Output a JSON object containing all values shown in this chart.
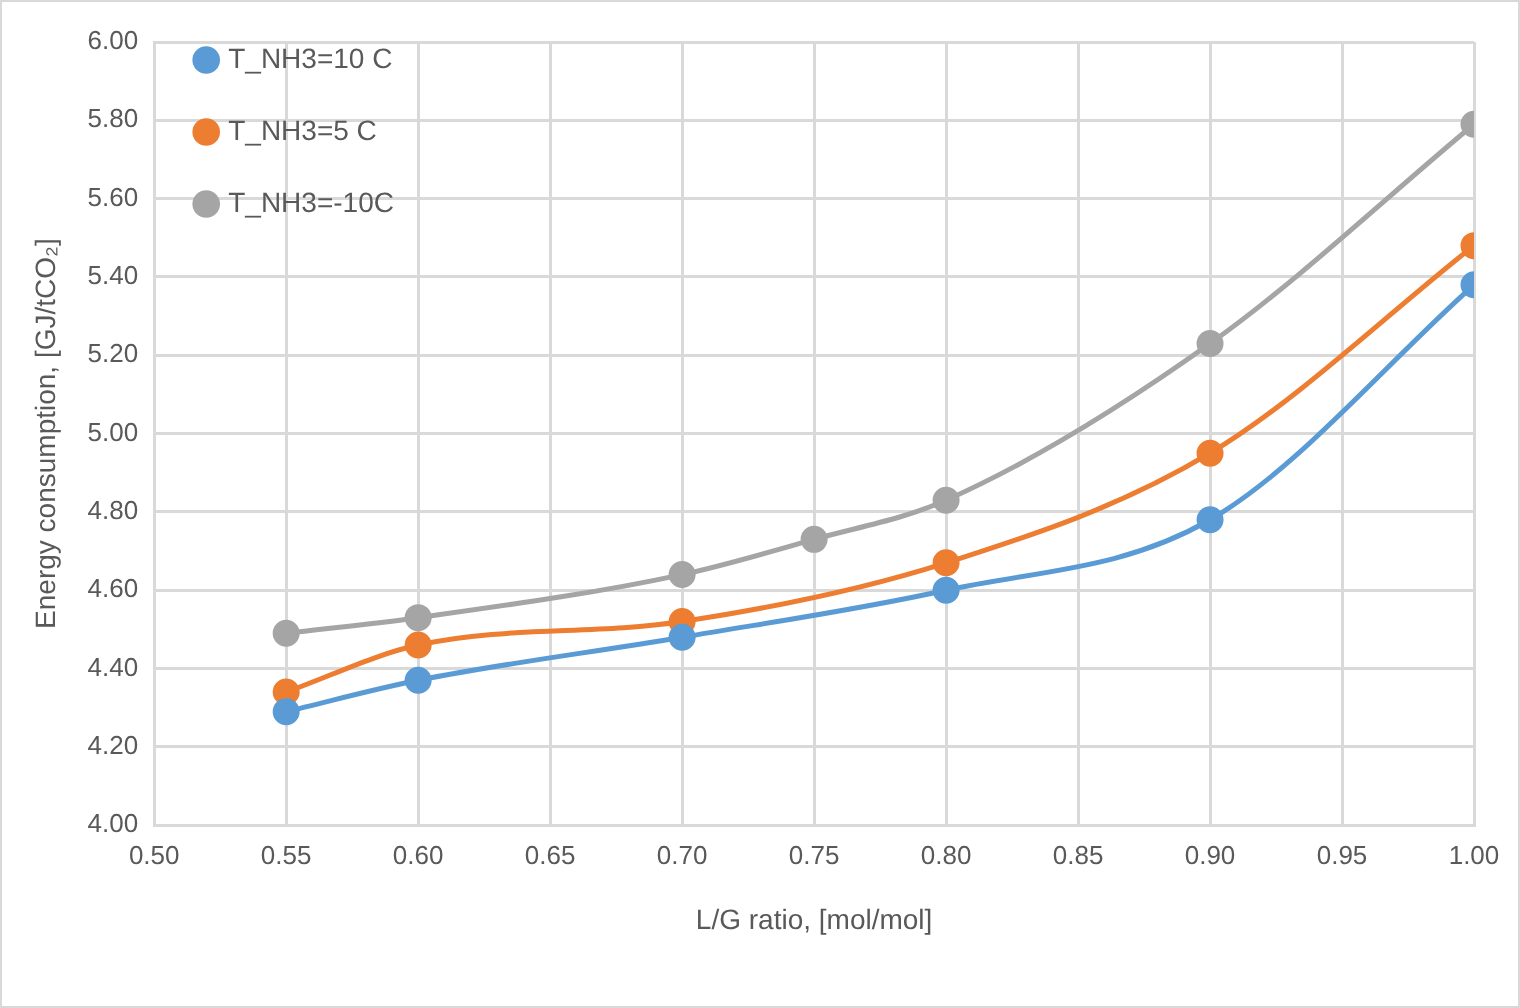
{
  "chart_data": {
    "type": "line",
    "xlabel": "L/G ratio, [mol/mol]",
    "ylabel": "Energy consumption, [GJ/tCO₂]",
    "xlim": [
      0.5,
      1.0
    ],
    "xticks": [
      {
        "value": 0.5,
        "label": "0.50"
      },
      {
        "value": 0.55,
        "label": "0.55"
      },
      {
        "value": 0.6,
        "label": "0.60"
      },
      {
        "value": 0.65,
        "label": "0.65"
      },
      {
        "value": 0.7,
        "label": "0.70"
      },
      {
        "value": 0.75,
        "label": "0.75"
      },
      {
        "value": 0.8,
        "label": "0.80"
      },
      {
        "value": 0.85,
        "label": "0.85"
      },
      {
        "value": 0.9,
        "label": "0.90"
      },
      {
        "value": 0.95,
        "label": "0.95"
      },
      {
        "value": 1.0,
        "label": "1.00"
      }
    ],
    "ylim": [
      4.0,
      6.0
    ],
    "yticks": [
      {
        "value": 4.0,
        "label": "4.00"
      },
      {
        "value": 4.2,
        "label": "4.20"
      },
      {
        "value": 4.4,
        "label": "4.40"
      },
      {
        "value": 4.6,
        "label": "4.60"
      },
      {
        "value": 4.8,
        "label": "4.80"
      },
      {
        "value": 5.0,
        "label": "5.00"
      },
      {
        "value": 5.2,
        "label": "5.20"
      },
      {
        "value": 5.4,
        "label": "5.40"
      },
      {
        "value": 5.6,
        "label": "5.60"
      },
      {
        "value": 5.8,
        "label": "5.80"
      },
      {
        "value": 6.0,
        "label": "6.00"
      }
    ],
    "grid": true,
    "legend": "top left",
    "marker": "circle",
    "line_style": "solid",
    "series": [
      {
        "name": "T_NH3=10 C",
        "color": "#5b9bd5",
        "x": [
          0.55,
          0.6,
          0.7,
          0.8,
          0.9,
          1.0
        ],
        "values": [
          4.29,
          4.37,
          4.48,
          4.6,
          4.78,
          5.38
        ]
      },
      {
        "name": "T_NH3=5 C",
        "color": "#ed7d31",
        "x": [
          0.55,
          0.6,
          0.7,
          0.8,
          0.9,
          1.0
        ],
        "values": [
          4.34,
          4.46,
          4.52,
          4.67,
          4.95,
          5.48
        ]
      },
      {
        "name": "T_NH3=-10C",
        "color": "#a5a5a5",
        "x": [
          0.55,
          0.6,
          0.7,
          0.75,
          0.8,
          0.9,
          1.0
        ],
        "values": [
          4.49,
          4.53,
          4.64,
          4.73,
          4.83,
          5.23,
          5.79
        ]
      }
    ]
  }
}
